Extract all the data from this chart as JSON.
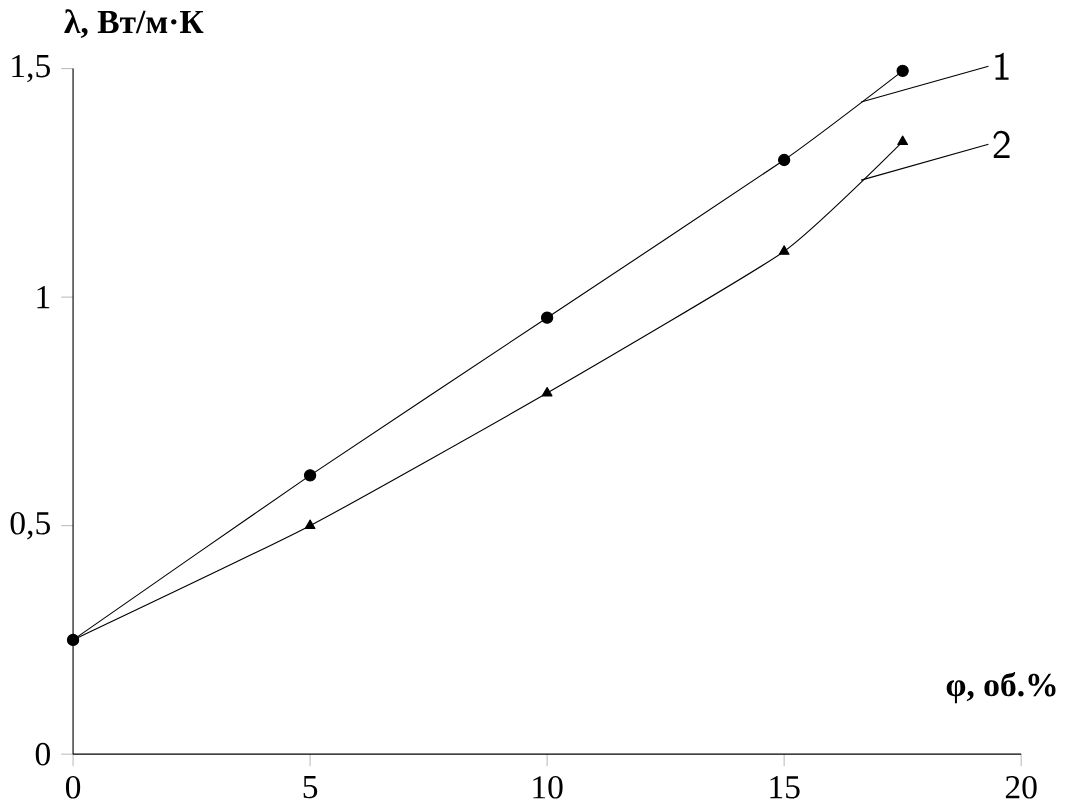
{
  "chart_data": {
    "type": "line",
    "xlabel": "φ, об.%",
    "ylabel": "λ, Вт/м·К",
    "x": [
      0,
      5,
      10,
      15,
      17.5
    ],
    "series": [
      {
        "name": "1",
        "color": "#000000",
        "marker": "circle",
        "values": [
          0.25,
          0.61,
          0.955,
          1.3,
          1.495
        ]
      },
      {
        "name": "2",
        "color": "#000000",
        "marker": "triangle",
        "values": [
          0.25,
          0.5,
          0.79,
          1.1,
          1.34
        ]
      }
    ],
    "xlim": [
      0,
      20
    ],
    "xticks": [
      0,
      5,
      10,
      15,
      20
    ],
    "ylim": [
      0,
      1.5
    ],
    "yticks": [
      0,
      {
        "value": 0.5,
        "label": "0,5"
      },
      1,
      {
        "value": 1.5,
        "label": "1,5"
      }
    ],
    "line_style": "solid",
    "grid": false,
    "legend": "top right"
  }
}
